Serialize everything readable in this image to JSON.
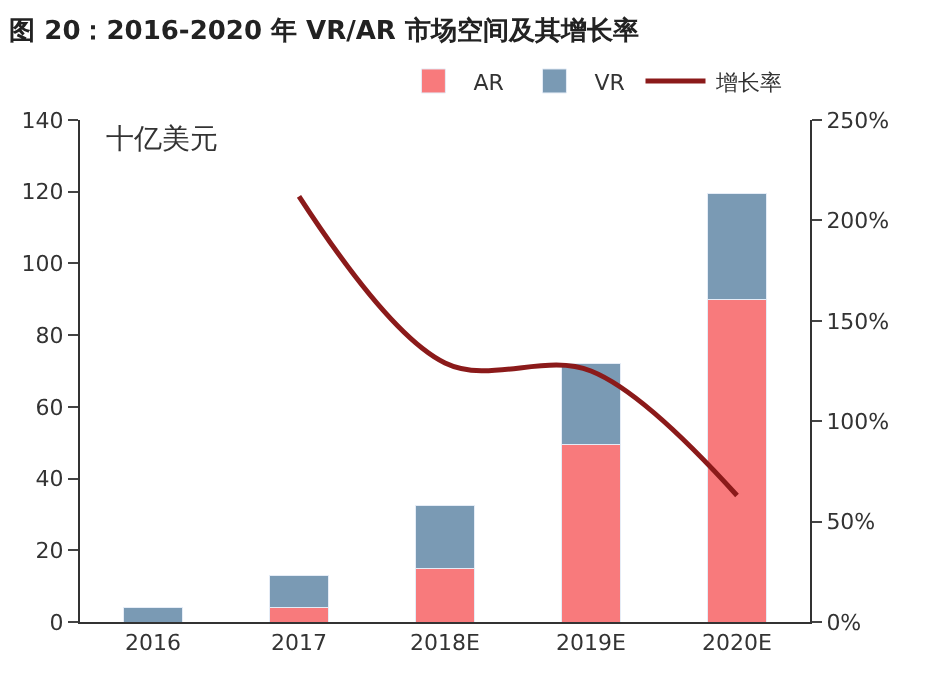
{
  "chart_data": {
    "type": "bar",
    "title": "图 20：2016-2020 年 VR/AR 市场空间及其增长率",
    "categories": [
      "2016",
      "2017",
      "2018E",
      "2019E",
      "2020E"
    ],
    "stacked": true,
    "series": [
      {
        "name": "AR",
        "color": "#f87a7c",
        "values": [
          null,
          4,
          15,
          49.5,
          90
        ]
      },
      {
        "name": "VR",
        "color": "#7a9ab4",
        "values": [
          4,
          9,
          17.5,
          22.5,
          29.5
        ]
      },
      {
        "name": "增长率",
        "type": "line",
        "axis": "y2",
        "color": "#8b1a1a",
        "marker": "none",
        "line_style": "solid",
        "values": [
          null,
          212,
          129,
          125,
          63
        ]
      }
    ],
    "annotations": [
      "十亿美元"
    ],
    "ylim": [
      0,
      140
    ],
    "yticks": [
      0,
      20,
      40,
      60,
      80,
      100,
      120,
      140
    ],
    "y2lim": [
      0,
      250
    ],
    "y2ticks": [
      {
        "value": 0,
        "label": "0%"
      },
      {
        "value": 50,
        "label": "50%"
      },
      {
        "value": 100,
        "label": "100%"
      },
      {
        "value": 150,
        "label": "150%"
      },
      {
        "value": 200,
        "label": "200%"
      },
      {
        "value": 250,
        "label": "250%"
      }
    ],
    "legend": "top"
  }
}
